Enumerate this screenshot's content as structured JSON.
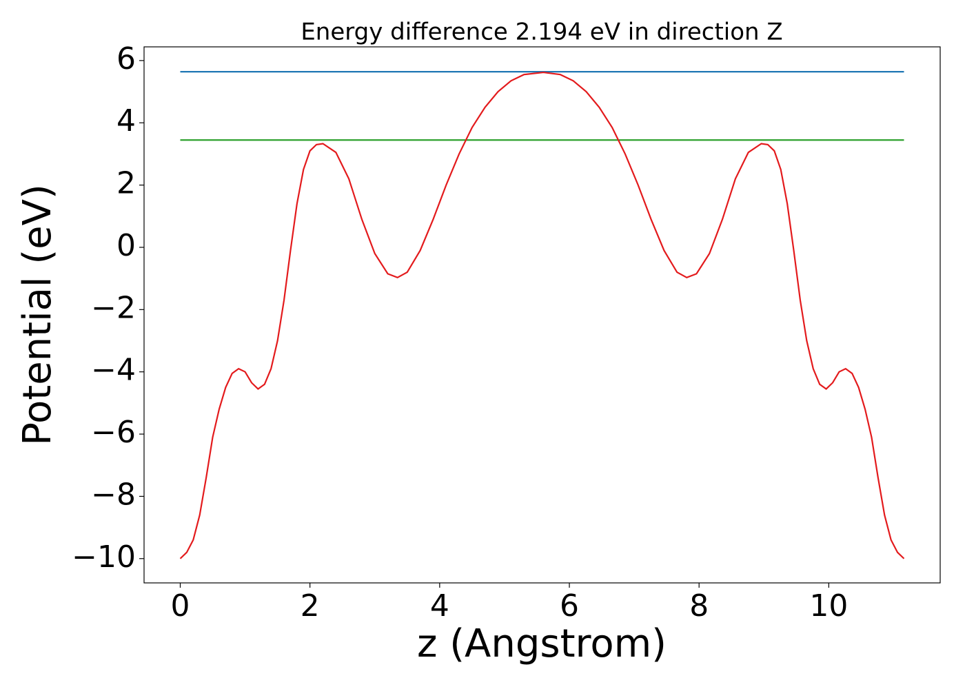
{
  "chart_data": {
    "type": "line",
    "title": "Energy difference 2.194 eV in direction Z",
    "xlabel": "z (Angstrom)",
    "ylabel": "Potential (eV)",
    "xlim": [
      -0.558,
      11.718
    ],
    "ylim": [
      -10.78,
      6.44
    ],
    "xticks": [
      0,
      2,
      4,
      6,
      8,
      10
    ],
    "yticks": [
      {
        "value": -10,
        "label": "−10"
      },
      {
        "value": -8,
        "label": "−8"
      },
      {
        "value": -6,
        "label": "−6"
      },
      {
        "value": -4,
        "label": "−4"
      },
      {
        "value": -2,
        "label": "−2"
      },
      0,
      2,
      4,
      6
    ],
    "series": [
      {
        "color": "#1f77b4",
        "x": [
          0,
          11.16
        ],
        "values": [
          5.64,
          5.64
        ]
      },
      {
        "color": "#2ca02c",
        "x": [
          0,
          11.16
        ],
        "values": [
          3.446,
          3.446
        ]
      },
      {
        "color": "#e31a1c",
        "x": [
          0,
          0.1,
          0.2,
          0.3,
          0.4,
          0.5,
          0.6,
          0.7,
          0.8,
          0.9,
          1.0,
          1.1,
          1.2,
          1.3,
          1.4,
          1.5,
          1.6,
          1.7,
          1.8,
          1.9,
          2.0,
          2.1,
          2.2,
          2.4,
          2.6,
          2.8,
          3.0,
          3.2,
          3.35,
          3.5,
          3.7,
          3.9,
          4.1,
          4.3,
          4.5,
          4.7,
          4.9,
          5.1,
          5.3,
          5.6,
          5.86,
          6.06,
          6.26,
          6.46,
          6.66,
          6.86,
          7.06,
          7.26,
          7.46,
          7.66,
          7.81,
          7.96,
          8.16,
          8.36,
          8.56,
          8.76,
          8.96,
          9.06,
          9.16,
          9.26,
          9.36,
          9.46,
          9.56,
          9.66,
          9.76,
          9.86,
          9.96,
          10.06,
          10.16,
          10.26,
          10.36,
          10.46,
          10.56,
          10.66,
          10.76,
          10.86,
          10.96,
          11.06,
          11.16
        ],
        "values": [
          -10,
          -9.8,
          -9.4,
          -8.6,
          -7.4,
          -6.1,
          -5.2,
          -4.5,
          -4.05,
          -3.9,
          -4.0,
          -4.35,
          -4.55,
          -4.4,
          -3.9,
          -3.0,
          -1.7,
          -0.1,
          1.4,
          2.5,
          3.1,
          3.3,
          3.33,
          3.05,
          2.2,
          0.9,
          -0.2,
          -0.85,
          -0.97,
          -0.8,
          -0.1,
          0.9,
          2.0,
          3.0,
          3.85,
          4.5,
          5.0,
          5.35,
          5.55,
          5.62,
          5.55,
          5.35,
          5.0,
          4.5,
          3.85,
          3.0,
          2.0,
          0.9,
          -0.1,
          -0.8,
          -0.97,
          -0.85,
          -0.2,
          0.9,
          2.2,
          3.05,
          3.33,
          3.3,
          3.1,
          2.5,
          1.4,
          -0.1,
          -1.7,
          -3.0,
          -3.9,
          -4.4,
          -4.55,
          -4.35,
          -4.0,
          -3.9,
          -4.05,
          -4.5,
          -5.2,
          -6.1,
          -7.4,
          -8.6,
          -9.4,
          -9.8,
          -10
        ]
      }
    ]
  }
}
